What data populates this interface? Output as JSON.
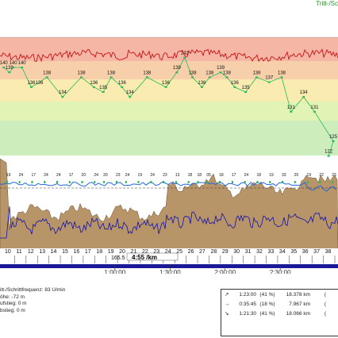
{
  "header": {
    "title": "Tritt-/Sc"
  },
  "chart_data": {
    "type": "line",
    "x_axis": {
      "min": 0,
      "max": 10800,
      "ticks": [
        3600,
        5400,
        7200,
        9000
      ],
      "tick_labels": [
        "1:00:00",
        "1:30:00",
        "2:00:00",
        "2:30:00"
      ]
    },
    "heart_rate_zones": [
      {
        "color": "#f5b6a6"
      },
      {
        "color": "#f8cfab"
      },
      {
        "color": "#faebb0"
      },
      {
        "color": "#e2f3b6"
      },
      {
        "color": "#cdedbd"
      }
    ],
    "heart_rate_labels": [
      {
        "x": 120,
        "y": 140,
        "label": "140"
      },
      {
        "x": 300,
        "y": 139,
        "label": "139"
      },
      {
        "x": 420,
        "y": 140,
        "label": "140"
      },
      {
        "x": 700,
        "y": 140,
        "label": "140"
      },
      {
        "x": 1000,
        "y": 136,
        "label": "136136"
      },
      {
        "x": 1500,
        "y": 138,
        "label": "138"
      },
      {
        "x": 2000,
        "y": 134,
        "label": "134"
      },
      {
        "x": 2600,
        "y": 138,
        "label": "138"
      },
      {
        "x": 3000,
        "y": 136,
        "label": "136"
      },
      {
        "x": 3300,
        "y": 135,
        "label": "135"
      },
      {
        "x": 3550,
        "y": 138,
        "label": "138"
      },
      {
        "x": 3900,
        "y": 136,
        "label": "136"
      },
      {
        "x": 4150,
        "y": 134,
        "label": "134"
      },
      {
        "x": 4700,
        "y": 138,
        "label": "138"
      },
      {
        "x": 5300,
        "y": 136,
        "label": "136"
      },
      {
        "x": 5650,
        "y": 139,
        "label": "139"
      },
      {
        "x": 5900,
        "y": 142,
        "label": "142"
      },
      {
        "x": 6150,
        "y": 138,
        "label": "138"
      },
      {
        "x": 6450,
        "y": 136,
        "label": "136"
      },
      {
        "x": 6700,
        "y": 138,
        "label": "138"
      },
      {
        "x": 7050,
        "y": 139,
        "label": "139"
      },
      {
        "x": 7250,
        "y": 138,
        "label": "138"
      },
      {
        "x": 7500,
        "y": 136,
        "label": "136"
      },
      {
        "x": 7850,
        "y": 135,
        "label": "135"
      },
      {
        "x": 8200,
        "y": 138,
        "label": "138"
      },
      {
        "x": 8600,
        "y": 137,
        "label": "137"
      },
      {
        "x": 9000,
        "y": 138,
        "label": "138"
      },
      {
        "x": 9300,
        "y": 131,
        "label": "131"
      },
      {
        "x": 9700,
        "y": 134,
        "label": "134"
      },
      {
        "x": 10050,
        "y": 131,
        "label": "131"
      },
      {
        "x": 10650,
        "y": 125,
        "label": "125"
      },
      {
        "x": 10500,
        "y": 122,
        "label": "122"
      }
    ],
    "cadence_labels": [
      {
        "x": 200,
        "label": "19"
      },
      {
        "x": 600,
        "label": "24"
      },
      {
        "x": 1000,
        "label": "17"
      },
      {
        "x": 1400,
        "label": "24"
      },
      {
        "x": 1800,
        "label": "24"
      },
      {
        "x": 2200,
        "label": "17"
      },
      {
        "x": 2600,
        "label": "20"
      },
      {
        "x": 3000,
        "label": "24"
      },
      {
        "x": 3300,
        "label": "20"
      },
      {
        "x": 3700,
        "label": "23"
      },
      {
        "x": 4000,
        "label": "24"
      },
      {
        "x": 4400,
        "label": "19"
      },
      {
        "x": 4800,
        "label": "24"
      },
      {
        "x": 5200,
        "label": "23"
      },
      {
        "x": 5600,
        "label": "13"
      },
      {
        "x": 6000,
        "label": "18"
      },
      {
        "x": 6300,
        "label": "18"
      },
      {
        "x": 6600,
        "label": "05"
      },
      {
        "x": 7000,
        "label": "18"
      },
      {
        "x": 7400,
        "label": "17"
      },
      {
        "x": 7800,
        "label": "24"
      },
      {
        "x": 8200,
        "label": "18"
      },
      {
        "x": 8600,
        "label": "19"
      },
      {
        "x": 9000,
        "label": "33"
      },
      {
        "x": 9400,
        "label": "20"
      },
      {
        "x": 9800,
        "label": "19"
      },
      {
        "x": 10200,
        "label": "22"
      },
      {
        "x": 10600,
        "label": "33"
      }
    ],
    "kilometer_labels": [
      "10",
      "11",
      "12",
      "13",
      "14",
      "15",
      "16",
      "17",
      "18",
      "19",
      "20",
      "21",
      "22",
      "23",
      "24",
      "25",
      "26",
      "27",
      "28",
      "29",
      "30",
      "31",
      "32",
      "33",
      "34",
      "35",
      "36",
      "37",
      "38"
    ],
    "pace_label": "4:55 /km",
    "pace_prefix": "165.5"
  },
  "info": {
    "lines": [
      "itt-/Schrittfrequenz: 83 U/min",
      "öhe: -72 m",
      "ufstieg: 0 m",
      "bstieg: 0 m"
    ]
  },
  "summary": {
    "rows": [
      {
        "arrow": "↗",
        "time": "1:23:00",
        "pct": "(41 %)",
        "dist": "18.378 km",
        "extra": "("
      },
      {
        "arrow": "→",
        "time": "0:35:45",
        "pct": "(18 %)",
        "dist": "7.967 km",
        "extra": "("
      },
      {
        "arrow": "↘",
        "time": "1:21:30",
        "pct": "(41 %)",
        "dist": "18.066 km",
        "extra": "("
      }
    ]
  },
  "colors": {
    "heart_rate_line": "#cc1111",
    "elevation_fill": "#b89568",
    "speed_line": "#1111aa",
    "cadence_line": "#2266dd",
    "marker": "#22bb55",
    "axis_bar": "#1a1a99"
  }
}
